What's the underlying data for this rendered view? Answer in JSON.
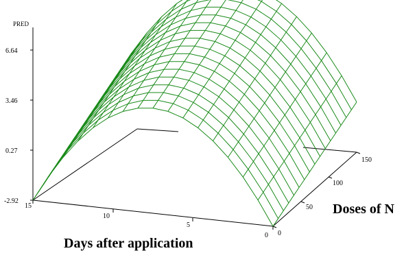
{
  "chart_data": {
    "type": "surface",
    "z_label": "PRED",
    "x_label": "Doses of N",
    "y_label": "Days after application",
    "z_ticks": [
      "6.64",
      "3.46",
      "0.27",
      "-2.92"
    ],
    "x_ticks": [
      "0",
      "50",
      "100",
      "150"
    ],
    "y_ticks": [
      "15",
      "10",
      "5",
      "0"
    ],
    "zlim": [
      -2.92,
      9.82
    ],
    "xlim": [
      0,
      150
    ],
    "ylim": [
      0,
      15
    ],
    "grid_cells": 16,
    "surface": "PRED = -2.92 + 4.1*(1-(1-day/7.5)^2) + 3.2*(Doses of N/150) + 5.2*(day/7.5)*(1-day/15)",
    "color": "#1a8a1a"
  }
}
